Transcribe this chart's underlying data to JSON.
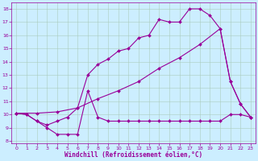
{
  "xlabel": "Windchill (Refroidissement éolien,°C)",
  "bg_color": "#cceeff",
  "line_color": "#990099",
  "grid_color": "#aaccbb",
  "xlim": [
    -0.5,
    23.5
  ],
  "ylim": [
    7.8,
    18.5
  ],
  "xticks": [
    0,
    1,
    2,
    3,
    4,
    5,
    6,
    7,
    8,
    9,
    10,
    11,
    12,
    13,
    14,
    15,
    16,
    17,
    18,
    19,
    20,
    21,
    22,
    23
  ],
  "yticks": [
    8,
    9,
    10,
    11,
    12,
    13,
    14,
    15,
    16,
    17,
    18
  ],
  "line1_x": [
    0,
    1,
    2,
    3,
    4,
    5,
    6,
    7,
    8,
    9,
    10,
    11,
    12,
    13,
    14,
    15,
    16,
    17,
    18,
    19,
    20,
    21,
    22,
    23
  ],
  "line1_y": [
    10.1,
    10.0,
    9.5,
    9.0,
    8.5,
    8.5,
    8.5,
    11.8,
    9.8,
    9.5,
    9.5,
    9.5,
    9.5,
    9.5,
    9.5,
    9.5,
    9.5,
    9.5,
    9.5,
    9.5,
    9.5,
    10.0,
    10.0,
    9.8
  ],
  "line2_x": [
    0,
    1,
    2,
    3,
    4,
    5,
    6,
    7,
    8,
    9,
    10,
    11,
    12,
    13,
    14,
    15,
    16,
    17,
    18,
    19,
    20,
    21,
    22,
    23
  ],
  "line2_y": [
    10.1,
    10.0,
    9.5,
    9.2,
    9.5,
    9.8,
    10.5,
    13.0,
    13.8,
    14.2,
    14.8,
    15.0,
    15.8,
    16.0,
    17.2,
    17.0,
    17.0,
    18.0,
    18.0,
    17.5,
    16.5,
    12.5,
    10.8,
    9.8
  ],
  "line3_x": [
    0,
    2,
    4,
    6,
    8,
    10,
    12,
    14,
    16,
    18,
    20,
    21,
    22,
    23
  ],
  "line3_y": [
    10.1,
    10.1,
    10.2,
    10.5,
    11.2,
    11.8,
    12.5,
    13.5,
    14.3,
    15.3,
    16.5,
    12.5,
    10.8,
    9.8
  ],
  "marker": "D",
  "markersize": 2,
  "linewidth": 0.8,
  "tick_fontsize": 4.5,
  "label_fontsize": 5.5
}
